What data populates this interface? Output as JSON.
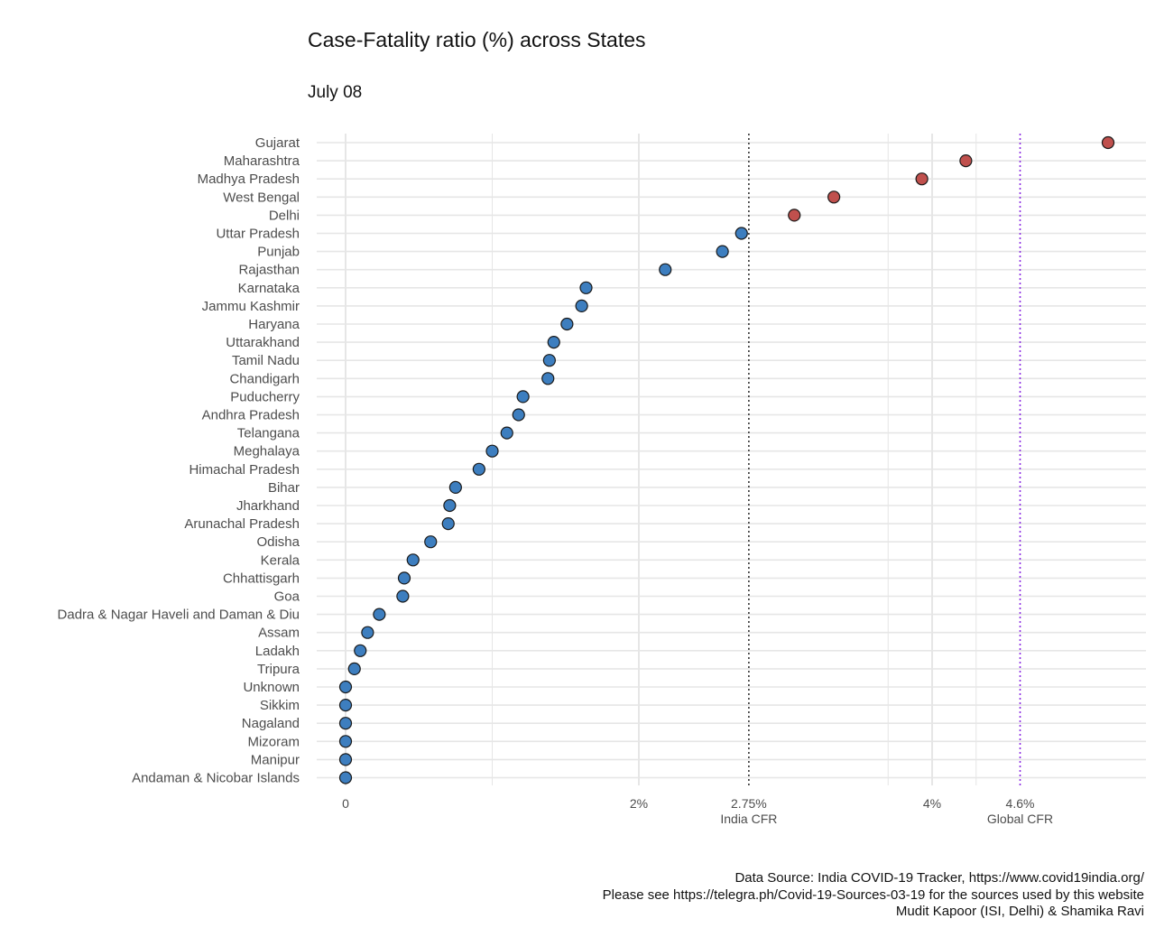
{
  "chart_data": {
    "type": "scatter",
    "title": "Case-Fatality ratio (%) across States",
    "subtitle": "July 08",
    "xlabel": "",
    "ylabel": "",
    "xlim": [
      -0.2,
      5.45
    ],
    "x_ticks": [
      {
        "value": 0,
        "label": "0"
      },
      {
        "value": 2,
        "label": "2%"
      },
      {
        "value": 2.75,
        "label": "2.75%"
      },
      {
        "value": 4,
        "label": "4%"
      },
      {
        "value": 4.6,
        "label": "4.6%"
      }
    ],
    "minor_gridlines": [
      1,
      3.7,
      4.3
    ],
    "reference_lines": [
      {
        "name": "India CFR",
        "label": "India CFR",
        "value": 2.75,
        "color": "#333333",
        "style": "dotted"
      },
      {
        "name": "Global CFR",
        "label": "Global CFR",
        "value": 4.6,
        "color": "#8a2be2",
        "style": "dotted"
      }
    ],
    "threshold": 2.75,
    "colors": {
      "above": "#c0504d",
      "below": "#3d7ebf",
      "outline": "#1a1a1a",
      "grid": "#e6e6e6"
    },
    "points": [
      {
        "state": "Gujarat",
        "value": 5.2
      },
      {
        "state": "Maharashtra",
        "value": 4.23
      },
      {
        "state": "Madhya Pradesh",
        "value": 3.93
      },
      {
        "state": "West Bengal",
        "value": 3.33
      },
      {
        "state": "Delhi",
        "value": 3.06
      },
      {
        "state": "Uttar Pradesh",
        "value": 2.7
      },
      {
        "state": "Punjab",
        "value": 2.57
      },
      {
        "state": "Rajasthan",
        "value": 2.18
      },
      {
        "state": "Karnataka",
        "value": 1.64
      },
      {
        "state": "Jammu Kashmir",
        "value": 1.61
      },
      {
        "state": "Haryana",
        "value": 1.51
      },
      {
        "state": "Uttarakhand",
        "value": 1.42
      },
      {
        "state": "Tamil Nadu",
        "value": 1.39
      },
      {
        "state": "Chandigarh",
        "value": 1.38
      },
      {
        "state": "Puducherry",
        "value": 1.21
      },
      {
        "state": "Andhra Pradesh",
        "value": 1.18
      },
      {
        "state": "Telangana",
        "value": 1.1
      },
      {
        "state": "Meghalaya",
        "value": 1.0
      },
      {
        "state": "Himachal Pradesh",
        "value": 0.91
      },
      {
        "state": "Bihar",
        "value": 0.75
      },
      {
        "state": "Jharkhand",
        "value": 0.71
      },
      {
        "state": "Arunachal Pradesh",
        "value": 0.7
      },
      {
        "state": "Odisha",
        "value": 0.58
      },
      {
        "state": "Kerala",
        "value": 0.46
      },
      {
        "state": "Chhattisgarh",
        "value": 0.4
      },
      {
        "state": "Goa",
        "value": 0.39
      },
      {
        "state": "Dadra & Nagar Haveli and Daman & Diu",
        "value": 0.23
      },
      {
        "state": "Assam",
        "value": 0.15
      },
      {
        "state": "Ladakh",
        "value": 0.1
      },
      {
        "state": "Tripura",
        "value": 0.06
      },
      {
        "state": "Unknown",
        "value": 0
      },
      {
        "state": "Sikkim",
        "value": 0
      },
      {
        "state": "Nagaland",
        "value": 0
      },
      {
        "state": "Mizoram",
        "value": 0
      },
      {
        "state": "Manipur",
        "value": 0
      },
      {
        "state": "Andaman & Nicobar Islands",
        "value": 0
      }
    ]
  },
  "caption": {
    "line1": "Data Source: India COVID-19 Tracker, https://www.covid19india.org/",
    "line2": "Please see https://telegra.ph/Covid-19-Sources-03-19 for the sources used by this website",
    "line3": "Mudit Kapoor (ISI, Delhi) & Shamika Ravi"
  }
}
